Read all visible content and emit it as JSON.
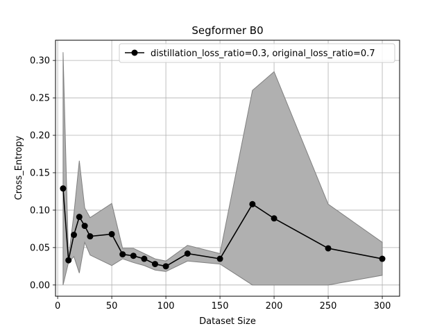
{
  "chart_data": {
    "type": "line",
    "title": "Segformer B0",
    "xlabel": "Dataset Size",
    "ylabel": "Cross_Entropy",
    "xlim": [
      -2,
      316
    ],
    "ylim": [
      -0.015,
      0.327
    ],
    "xticks": [
      0,
      50,
      100,
      150,
      200,
      250,
      300
    ],
    "yticks": [
      0.0,
      0.05,
      0.1,
      0.15,
      0.2,
      0.25,
      0.3
    ],
    "ytick_labels": [
      "0.00",
      "0.05",
      "0.10",
      "0.15",
      "0.20",
      "0.25",
      "0.30"
    ],
    "grid": true,
    "legend_position": "top-right",
    "series": [
      {
        "name": "distillation_loss_ratio=0.3, original_loss_ratio=0.7",
        "color": "#000000",
        "marker": "circle",
        "x": [
          5,
          10,
          15,
          20,
          25,
          30,
          50,
          60,
          70,
          80,
          90,
          100,
          120,
          150,
          180,
          200,
          250,
          300
        ],
        "y": [
          0.129,
          0.033,
          0.067,
          0.091,
          0.079,
          0.065,
          0.068,
          0.041,
          0.039,
          0.035,
          0.028,
          0.025,
          0.042,
          0.035,
          0.108,
          0.089,
          0.049,
          0.035
        ],
        "band_lower": [
          0.0,
          0.03,
          0.038,
          0.016,
          0.057,
          0.04,
          0.026,
          0.035,
          0.03,
          0.026,
          0.02,
          0.018,
          0.032,
          0.028,
          0.0,
          0.0,
          0.0,
          0.013
        ],
        "band_upper": [
          0.311,
          0.036,
          0.095,
          0.166,
          0.103,
          0.09,
          0.109,
          0.049,
          0.049,
          0.042,
          0.035,
          0.032,
          0.053,
          0.042,
          0.26,
          0.285,
          0.108,
          0.057
        ],
        "band_color": "#b0b0b0"
      }
    ]
  }
}
